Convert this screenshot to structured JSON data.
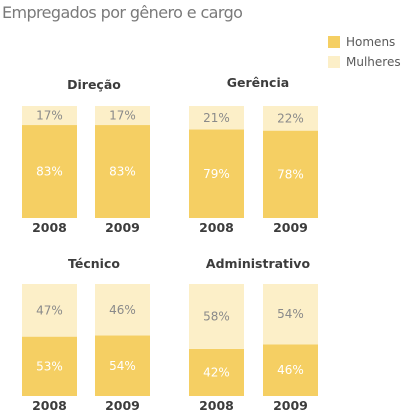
{
  "title": "Empregados por gênero e cargo",
  "legend": [
    {
      "name": "Homens",
      "color": "#f5cf63"
    },
    {
      "name": "Mulheres",
      "color": "#fcefc8"
    }
  ],
  "chart_data": [
    {
      "type": "bar",
      "title": "Direção",
      "categories": [
        "2008",
        "2009"
      ],
      "series": [
        {
          "name": "Homens",
          "values": [
            83,
            83
          ],
          "labels": [
            "83%",
            "83%"
          ]
        },
        {
          "name": "Mulheres",
          "values": [
            17,
            17
          ],
          "labels": [
            "17%",
            "17%"
          ]
        }
      ],
      "ylim": [
        0,
        100
      ],
      "grid": false,
      "legend": "top-right"
    },
    {
      "type": "bar",
      "title": "Gerência",
      "categories": [
        "2008",
        "2009"
      ],
      "series": [
        {
          "name": "Homens",
          "values": [
            79,
            78
          ],
          "labels": [
            "79%",
            "78%"
          ]
        },
        {
          "name": "Mulheres",
          "values": [
            21,
            22
          ],
          "labels": [
            "21%",
            "22%"
          ]
        }
      ],
      "ylim": [
        0,
        100
      ],
      "grid": false,
      "legend": "top-right"
    },
    {
      "type": "bar",
      "title": "Técnico",
      "categories": [
        "2008",
        "2009"
      ],
      "series": [
        {
          "name": "Homens",
          "values": [
            53,
            54
          ],
          "labels": [
            "53%",
            "54%"
          ]
        },
        {
          "name": "Mulheres",
          "values": [
            47,
            46
          ],
          "labels": [
            "47%",
            "46%"
          ]
        }
      ],
      "ylim": [
        0,
        100
      ],
      "grid": false,
      "legend": "top-right"
    },
    {
      "type": "bar",
      "title": "Administrativo",
      "categories": [
        "2008",
        "2009"
      ],
      "series": [
        {
          "name": "Homens",
          "values": [
            42,
            46
          ],
          "labels": [
            "42%",
            "46%"
          ]
        },
        {
          "name": "Mulheres",
          "values": [
            58,
            54
          ],
          "labels": [
            "58%",
            "54%"
          ]
        }
      ],
      "ylim": [
        0,
        100
      ],
      "grid": false,
      "legend": "top-right"
    }
  ]
}
